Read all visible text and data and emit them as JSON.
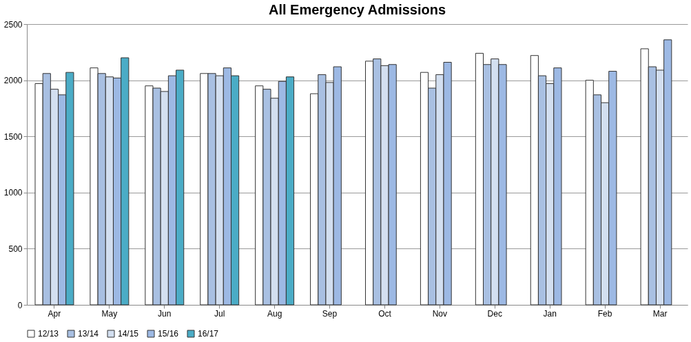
{
  "chart_data": {
    "type": "bar",
    "title": "All Emergency Admissions",
    "categories": [
      "Apr",
      "May",
      "Jun",
      "Jul",
      "Aug",
      "Sep",
      "Oct",
      "Nov",
      "Dec",
      "Jan",
      "Feb",
      "Mar"
    ],
    "series": [
      {
        "name": "12/13",
        "color": "#ffffff",
        "values": [
          1970,
          2110,
          1950,
          2060,
          1950,
          1880,
          2170,
          2070,
          2240,
          2220,
          2000,
          2280
        ]
      },
      {
        "name": "13/14",
        "color": "#a9c0e2",
        "values": [
          2060,
          2060,
          1930,
          2060,
          1920,
          2050,
          2190,
          1930,
          2140,
          2040,
          1870,
          2120
        ]
      },
      {
        "name": "14/15",
        "color": "#d3dff0",
        "values": [
          1920,
          2030,
          1900,
          2040,
          1840,
          1980,
          2130,
          2050,
          2190,
          1970,
          1800,
          2090
        ]
      },
      {
        "name": "15/16",
        "color": "#9db9e4",
        "values": [
          1870,
          2020,
          2040,
          2110,
          1990,
          2120,
          2140,
          2160,
          2140,
          2110,
          2080,
          2360
        ]
      },
      {
        "name": "16/17",
        "color": "#4bacc6",
        "values": [
          2070,
          2200,
          2090,
          2040,
          2030,
          null,
          null,
          null,
          null,
          null,
          null,
          null
        ]
      }
    ],
    "ylim": [
      0,
      2500
    ],
    "yticks": [
      0,
      500,
      1000,
      1500,
      2000,
      2500
    ],
    "grid": "y",
    "legend": "bottom"
  }
}
